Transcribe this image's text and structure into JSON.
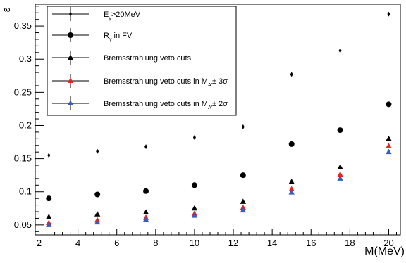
{
  "chart_data": {
    "type": "scatter",
    "xlabel": "M(MeV)",
    "ylabel": "ε",
    "xlim": [
      1.8,
      20.6
    ],
    "ylim": [
      0.035,
      0.383
    ],
    "x_ticks": [
      2,
      4,
      6,
      8,
      10,
      12,
      14,
      16,
      18,
      20
    ],
    "y_ticks": [
      0.05,
      0.1,
      0.15,
      0.2,
      0.25,
      0.3,
      0.35
    ],
    "grid": false,
    "legend_position": "top-left",
    "series": [
      {
        "name_main": "E",
        "name_sub": "γ",
        "name_rest": ">20MeV",
        "marker": "diamond",
        "color": "#000000",
        "x": [
          2.5,
          5,
          7.5,
          10,
          12.5,
          15,
          17.5,
          20
        ],
        "y": [
          0.155,
          0.161,
          0.168,
          0.182,
          0.198,
          0.277,
          0.313,
          0.368
        ]
      },
      {
        "name_main": "R",
        "name_sub": "γ",
        "name_rest": " in FV",
        "marker": "circle",
        "color": "#000000",
        "x": [
          2.5,
          5,
          7.5,
          10,
          12.5,
          15,
          17.5,
          20
        ],
        "y": [
          0.09,
          0.096,
          0.101,
          0.11,
          0.125,
          0.172,
          0.193,
          0.232
        ]
      },
      {
        "name_main": "Bremsstrahlung veto cuts",
        "name_sub": "",
        "name_rest": "",
        "marker": "triangle",
        "color": "#000000",
        "x": [
          2.5,
          5,
          7.5,
          10,
          12.5,
          15,
          17.5,
          20
        ],
        "y": [
          0.062,
          0.066,
          0.069,
          0.075,
          0.085,
          0.115,
          0.137,
          0.18
        ]
      },
      {
        "name_main": "Bremsstrahlung veto cuts in M",
        "name_sub": "A'",
        "name_rest": "± 3σ",
        "marker": "triangle",
        "color": "#e8241d",
        "x": [
          2.5,
          5,
          7.5,
          10,
          12.5,
          15,
          17.5,
          20
        ],
        "y": [
          0.053,
          0.057,
          0.061,
          0.067,
          0.076,
          0.104,
          0.126,
          0.169
        ]
      },
      {
        "name_main": "Bremsstrahlung veto cuts in M",
        "name_sub": "A'",
        "name_rest": "± 2σ",
        "marker": "triangle",
        "color": "#3a5bb6",
        "x": [
          2.5,
          5,
          7.5,
          10,
          12.5,
          15,
          17.5,
          20
        ],
        "y": [
          0.05,
          0.054,
          0.058,
          0.064,
          0.072,
          0.099,
          0.12,
          0.16
        ]
      }
    ]
  }
}
